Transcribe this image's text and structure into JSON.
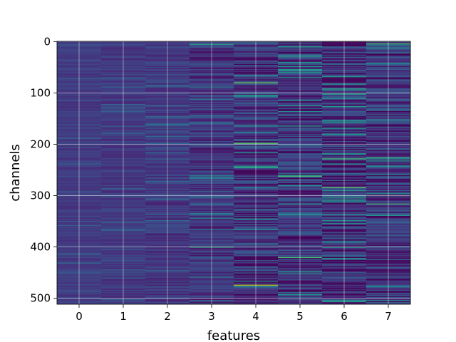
{
  "chart_data": {
    "type": "heatmap",
    "title": "",
    "xlabel": "features",
    "ylabel": "channels",
    "x_ticks": [
      0,
      1,
      2,
      3,
      4,
      5,
      6,
      7
    ],
    "y_ticks": [
      0,
      100,
      200,
      300,
      400,
      500
    ],
    "x_range": [
      -0.5,
      7.5
    ],
    "y_range": [
      -0.5,
      511.5
    ],
    "y_inverted": true,
    "grid": true,
    "colormap": "viridis",
    "columns": 8,
    "rows": 512,
    "column_contrast": [
      0.1,
      0.13,
      0.17,
      0.24,
      0.33,
      0.36,
      0.38,
      0.34
    ],
    "highlights": [
      {
        "column": 3,
        "row": 5,
        "level": 0.6
      },
      {
        "column": 3,
        "row": 400,
        "level": 0.65
      },
      {
        "column": 4,
        "row": 80,
        "level": 0.8
      },
      {
        "column": 4,
        "row": 198,
        "level": 0.75
      },
      {
        "column": 4,
        "row": 245,
        "level": 0.65
      },
      {
        "column": 4,
        "row": 474,
        "level": 0.9
      },
      {
        "column": 5,
        "row": 28,
        "level": 0.6
      },
      {
        "column": 5,
        "row": 262,
        "level": 0.7
      },
      {
        "column": 5,
        "row": 420,
        "level": 0.7
      },
      {
        "column": 6,
        "row": 92,
        "level": 0.6
      },
      {
        "column": 6,
        "row": 228,
        "level": 0.7
      },
      {
        "column": 6,
        "row": 284,
        "level": 0.75
      },
      {
        "column": 7,
        "row": 4,
        "level": 0.7
      },
      {
        "column": 7,
        "row": 225,
        "level": 0.65
      },
      {
        "column": 7,
        "row": 316,
        "level": 0.7
      }
    ]
  }
}
